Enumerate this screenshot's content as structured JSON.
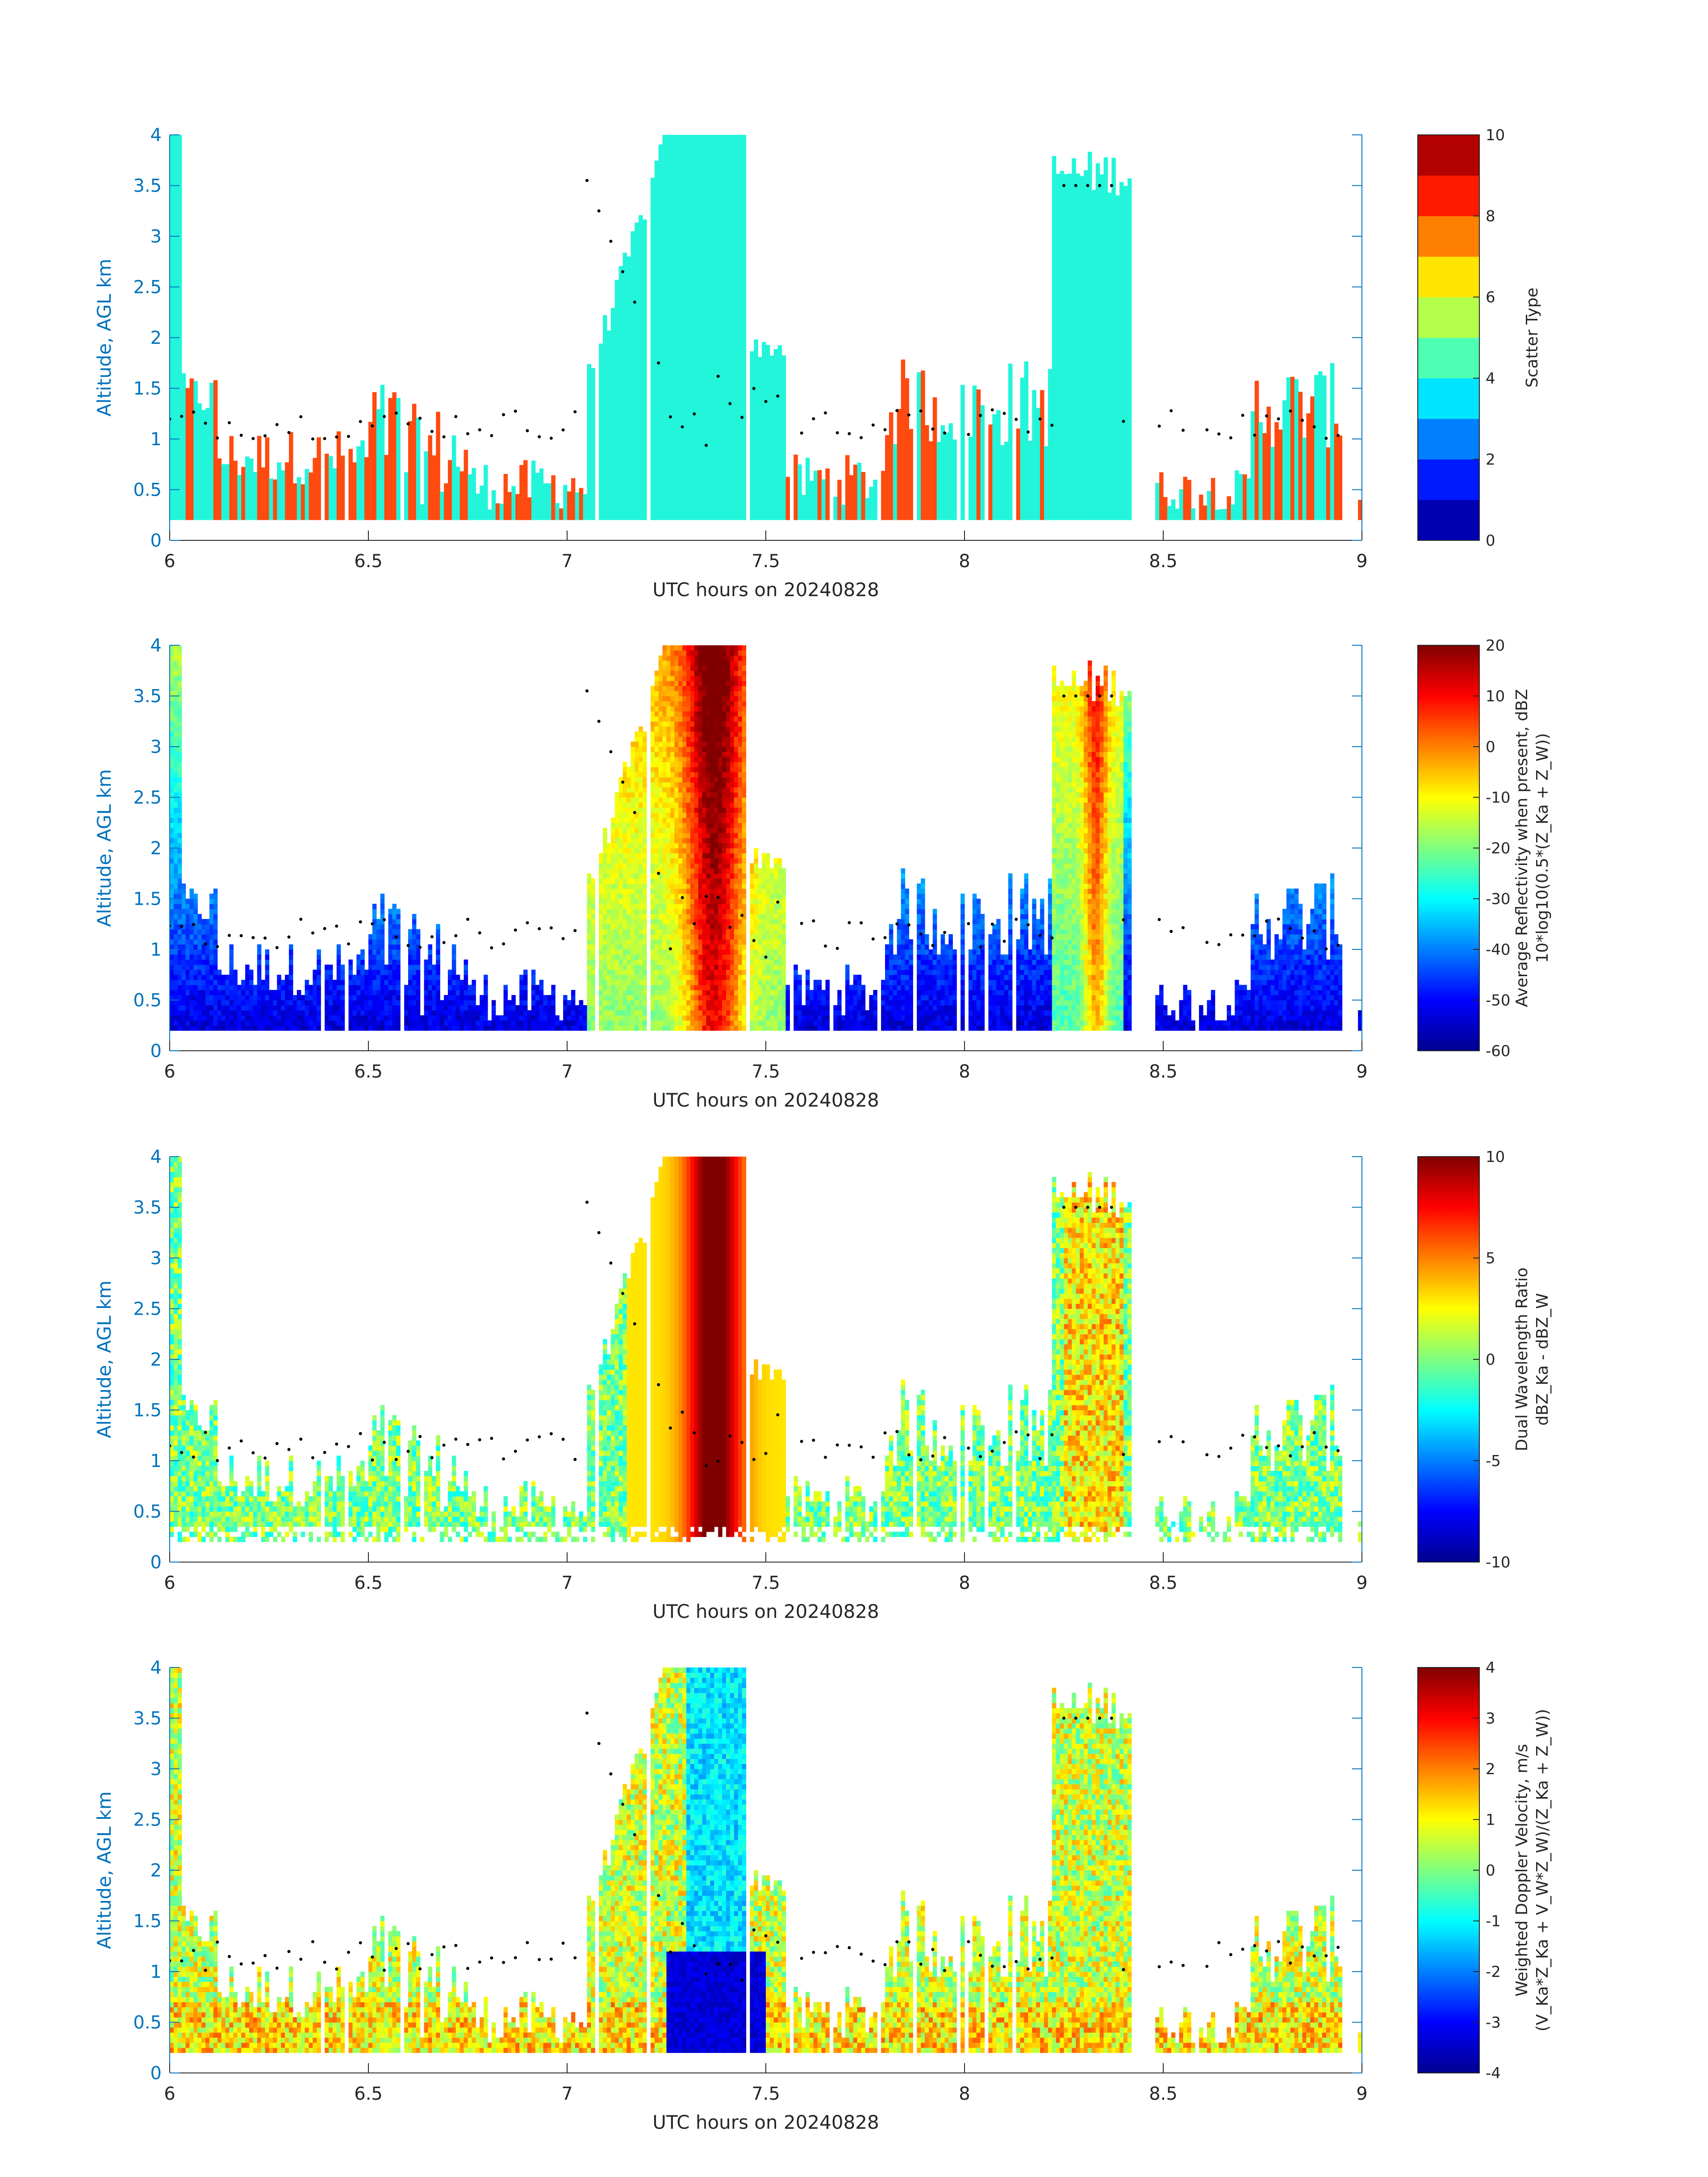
{
  "figure": {
    "x_axis_label": "UTC hours on 20240828",
    "y_axis_label": "Altitude, AGL km",
    "x_ticks": [
      "6",
      "6.5",
      "7",
      "7.5",
      "8",
      "8.5",
      "9"
    ],
    "y_ticks": [
      "0",
      "0.5",
      "1",
      "1.5",
      "2",
      "2.5",
      "3",
      "3.5",
      "4"
    ]
  },
  "chart_data": [
    {
      "type": "heatmap",
      "panel": "scatter-type",
      "colorbar_label": [
        "Scatter Type"
      ],
      "clim": [
        0,
        10
      ],
      "colorbar_ticks": [
        "0",
        "2",
        "4",
        "6",
        "8",
        "10"
      ],
      "xlim": [
        6,
        9
      ],
      "ylim": [
        0,
        4
      ],
      "colormap": "jet",
      "cloud_color": "#22f5da",
      "drizzle_color": "#ff4a10",
      "cloud_base_marker_color": "#000000"
    },
    {
      "type": "heatmap",
      "panel": "reflectivity",
      "colorbar_label": [
        "Average Reflectivity when present, dBZ",
        "10*log10(0.5*(Z_Ka + Z_W))"
      ],
      "clim": [
        -60,
        20
      ],
      "colorbar_ticks": [
        "-60",
        "-50",
        "-40",
        "-30",
        "-20",
        "-10",
        "0",
        "10",
        "20"
      ],
      "xlim": [
        6,
        9
      ],
      "ylim": [
        0,
        4
      ],
      "colormap": "jet"
    },
    {
      "type": "heatmap",
      "panel": "dual-wavelength-ratio",
      "colorbar_label": [
        "Dual Wavelength Ratio",
        "dBZ_Ka - dBZ_W"
      ],
      "clim": [
        -10,
        10
      ],
      "colorbar_ticks": [
        "-10",
        "-5",
        "0",
        "5",
        "10"
      ],
      "xlim": [
        6,
        9
      ],
      "ylim": [
        0,
        4
      ],
      "colormap": "jet"
    },
    {
      "type": "heatmap",
      "panel": "doppler-velocity",
      "colorbar_label": [
        "Weighted Doppler Velocity, m/s",
        "(V_Ka*Z_Ka + V_W*Z_W)/(Z_Ka + Z_W))"
      ],
      "clim": [
        -4,
        4
      ],
      "colorbar_ticks": [
        "-4",
        "-3",
        "-2",
        "-1",
        "0",
        "1",
        "2",
        "3",
        "4"
      ],
      "xlim": [
        6,
        9
      ],
      "ylim": [
        0,
        4
      ],
      "colormap": "jet"
    }
  ]
}
